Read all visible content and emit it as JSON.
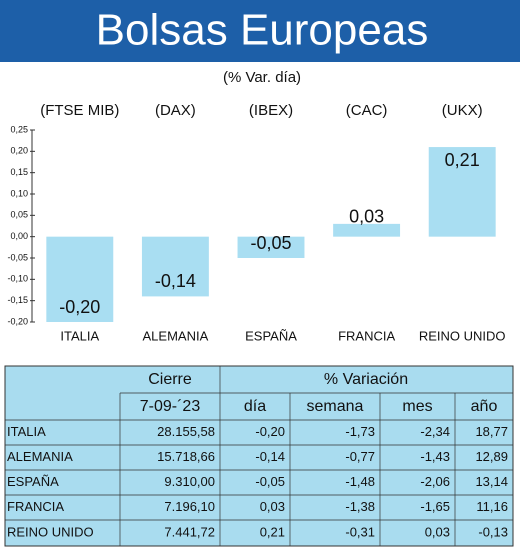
{
  "chart_data": {
    "type": "bar",
    "title": "Bolsas Europeas",
    "subtitle": "(% Var. día)",
    "index_labels": [
      "(FTSE MIB)",
      "(DAX)",
      "(IBEX)",
      "(CAC)",
      "(UKX)"
    ],
    "categories": [
      "ITALIA",
      "ALEMANIA",
      "ESPAÑA",
      "FRANCIA",
      "REINO UNIDO"
    ],
    "values": [
      -0.2,
      -0.14,
      -0.05,
      0.03,
      0.21
    ],
    "value_labels": [
      "-0,20",
      "-0,14",
      "-0,05",
      "0,03",
      "0,21"
    ],
    "color": "#a9def2",
    "ylim": [
      -0.2,
      0.25
    ],
    "yticks": [
      {
        "value": -0.2,
        "label": "-0,20"
      },
      {
        "value": -0.15,
        "label": "-0,15"
      },
      {
        "value": -0.1,
        "label": "-0,10"
      },
      {
        "value": -0.05,
        "label": "-0,05"
      },
      {
        "value": 0,
        "label": "0,00"
      },
      {
        "value": 0.05,
        "label": "0,05"
      },
      {
        "value": 0.1,
        "label": "0,10"
      },
      {
        "value": 0.15,
        "label": "0,15"
      },
      {
        "value": 0.2,
        "label": "0,20"
      },
      {
        "value": 0.25,
        "label": "0,25"
      }
    ],
    "grid": false
  },
  "table": {
    "header": [
      "Cierre",
      "% Variación"
    ],
    "subheader": [
      "7-09-´23",
      "día",
      "semana",
      "mes",
      "año"
    ],
    "rows": [
      [
        "ITALIA",
        "28.155,58",
        "-0,20",
        "-1,73",
        "-2,34",
        "18,77"
      ],
      [
        "ALEMANIA",
        "15.718,66",
        "-0,14",
        "-0,77",
        "-1,43",
        "12,89"
      ],
      [
        "ESPAÑA",
        "9.310,00",
        "-0,05",
        "-1,48",
        "-2,06",
        "13,14"
      ],
      [
        "FRANCIA",
        "7.196,10",
        "0,03",
        "-1,38",
        "-1,65",
        "11,16"
      ],
      [
        "REINO UNIDO",
        "7.441,72",
        "0,21",
        "-0,31",
        "0,03",
        "-0,13"
      ]
    ]
  }
}
